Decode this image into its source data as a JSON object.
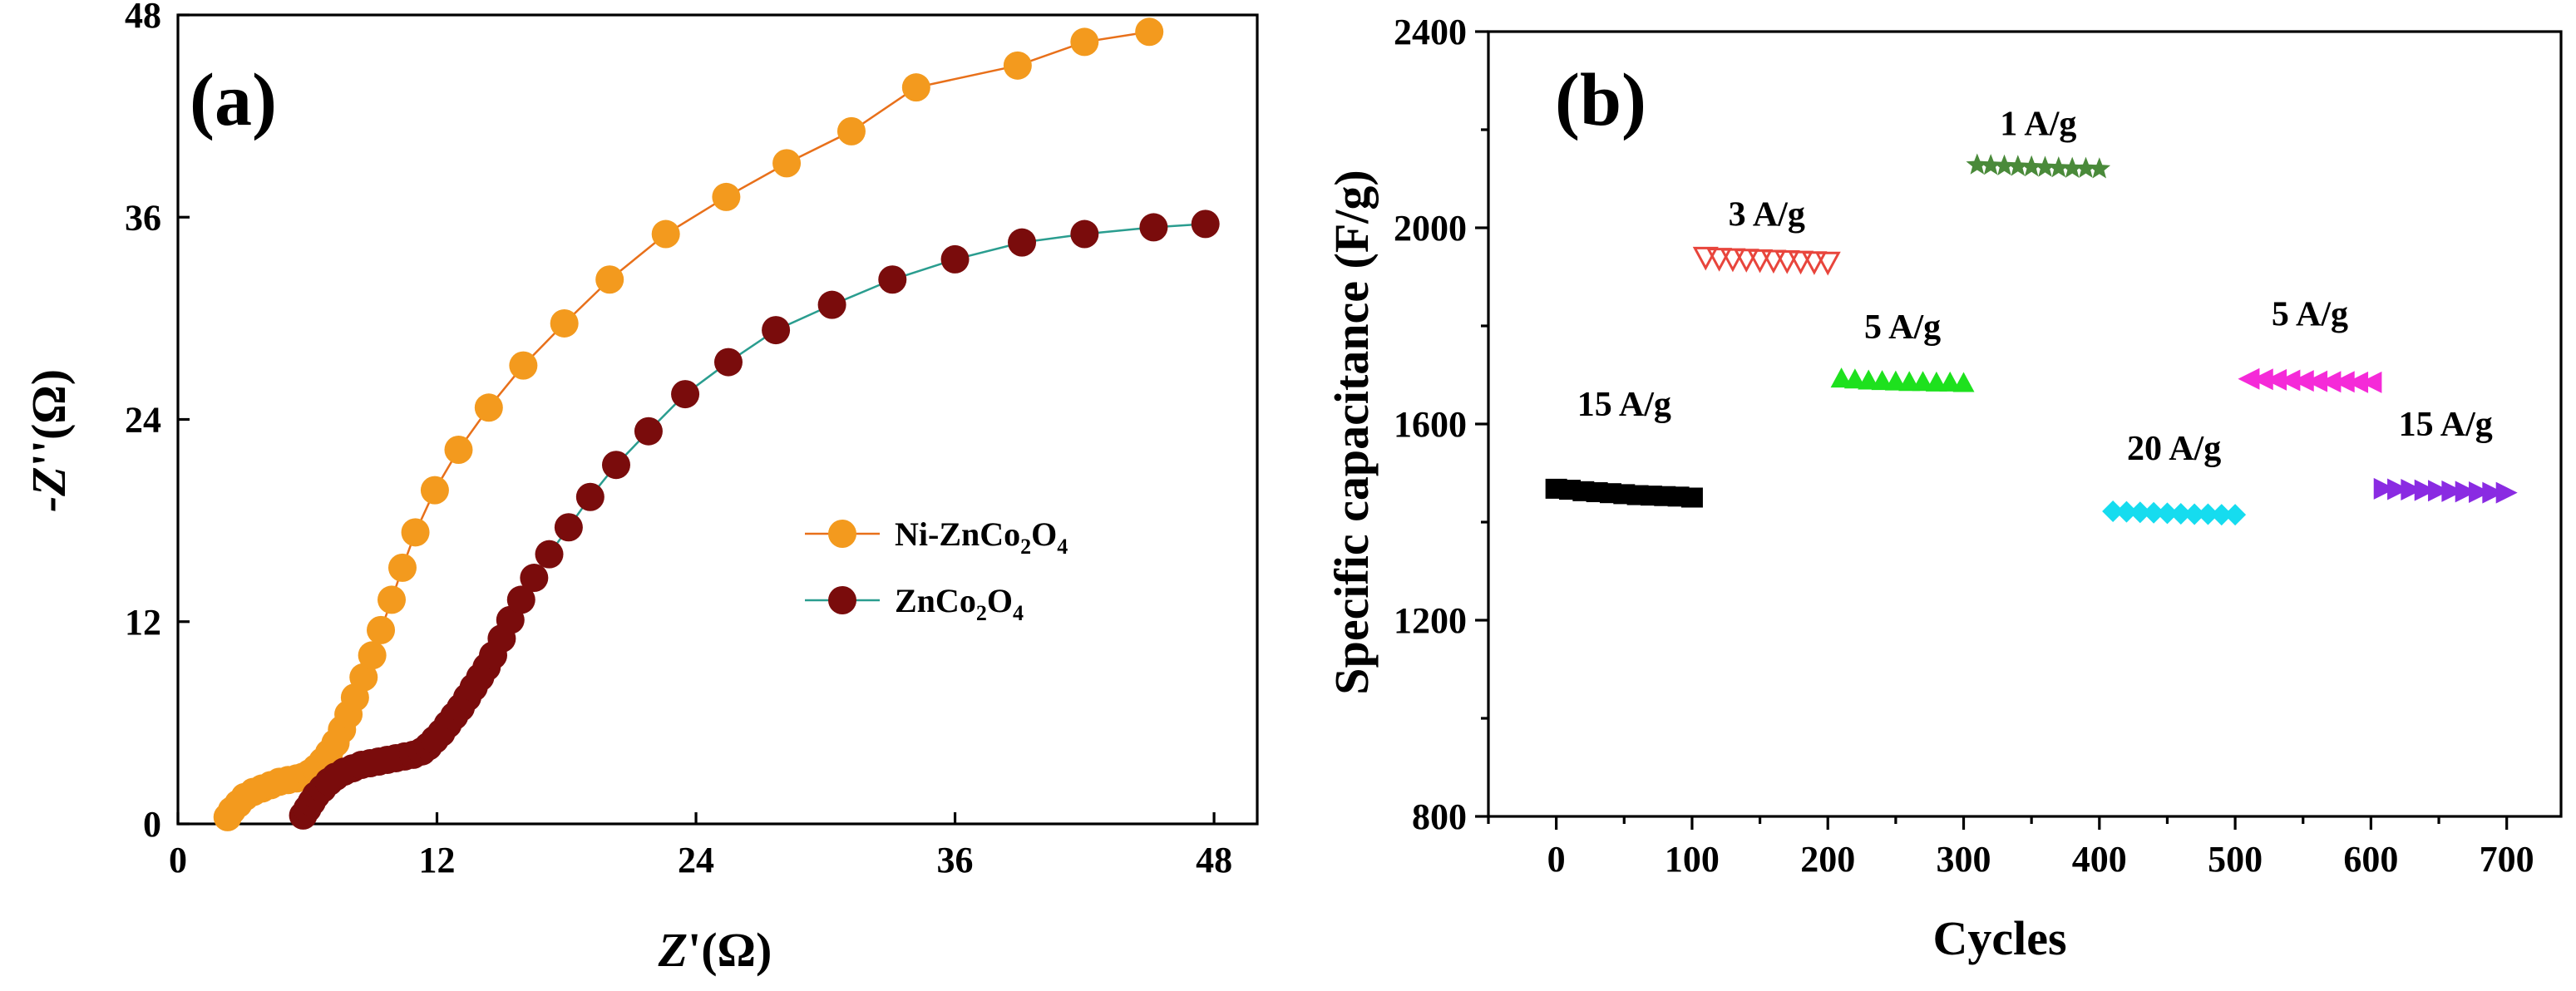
{
  "chart_data": [
    {
      "type": "scatter",
      "panel_label": "(a)",
      "xlabel_main": "Z",
      "xlabel_rest": "'(Ω)",
      "ylabel_main": "-Z",
      "ylabel_rest": "''(Ω)",
      "xlim": [
        0,
        50
      ],
      "ylim": [
        0,
        48
      ],
      "xticks": [
        0,
        12,
        24,
        36,
        48
      ],
      "yticks": [
        0,
        12,
        24,
        36,
        48
      ],
      "tick_labels_x": [
        "0",
        "12",
        "24",
        "36",
        "48"
      ],
      "tick_labels_y": [
        "0",
        "12",
        "24",
        "36",
        "48"
      ],
      "legend_position": "center-right",
      "legend_items": [
        {
          "base": "Ni-ZnCo",
          "s1": "2",
          "mid": "O",
          "s2": "4"
        },
        {
          "base": "ZnCo",
          "s1": "2",
          "mid": "O",
          "s2": "4"
        }
      ],
      "series": [
        {
          "name": "Ni-ZnCo2O4",
          "marker_color": "#f39a1e",
          "line_color": "#e8701a",
          "x": [
            2.3,
            2.5,
            2.8,
            3.1,
            3.5,
            3.9,
            4.3,
            4.7,
            5.1,
            5.5,
            5.8,
            6.1,
            6.4,
            6.7,
            7.0,
            7.3,
            7.6,
            7.9,
            8.2,
            8.6,
            9.0,
            9.4,
            9.9,
            10.4,
            11.0,
            11.9,
            13.0,
            14.4,
            16.0,
            17.9,
            20.0,
            22.6,
            25.4,
            28.2,
            31.2,
            34.2,
            38.9,
            42.0,
            45.0
          ],
          "y": [
            0.4,
            0.8,
            1.2,
            1.6,
            1.9,
            2.1,
            2.3,
            2.5,
            2.6,
            2.7,
            2.8,
            3.0,
            3.3,
            3.7,
            4.2,
            4.8,
            5.6,
            6.5,
            7.5,
            8.7,
            10.0,
            11.5,
            13.3,
            15.2,
            17.3,
            19.8,
            22.2,
            24.7,
            27.2,
            29.7,
            32.3,
            35.0,
            37.2,
            39.2,
            41.1,
            43.7,
            45.0,
            46.4,
            47.0
          ]
        },
        {
          "name": "ZnCo2O4",
          "marker_color": "#7a0c0c",
          "line_color": "#2a9d8f",
          "x": [
            5.8,
            6.0,
            6.2,
            6.4,
            6.7,
            7.0,
            7.3,
            7.7,
            8.1,
            8.5,
            8.9,
            9.3,
            9.7,
            10.1,
            10.5,
            10.9,
            11.3,
            11.6,
            11.9,
            12.2,
            12.5,
            12.8,
            13.1,
            13.4,
            13.7,
            14.0,
            14.3,
            14.6,
            15.0,
            15.4,
            15.9,
            16.5,
            17.2,
            18.1,
            19.1,
            20.3,
            21.8,
            23.5,
            25.5,
            27.7,
            30.3,
            33.1,
            36.0,
            39.1,
            42.0,
            45.2,
            47.6
          ],
          "y": [
            0.5,
            0.9,
            1.3,
            1.7,
            2.1,
            2.5,
            2.8,
            3.1,
            3.3,
            3.5,
            3.6,
            3.7,
            3.8,
            3.9,
            4.0,
            4.1,
            4.3,
            4.6,
            5.0,
            5.4,
            5.9,
            6.4,
            6.9,
            7.5,
            8.1,
            8.7,
            9.3,
            10.0,
            11.0,
            12.1,
            13.3,
            14.6,
            16.0,
            17.6,
            19.4,
            21.3,
            23.3,
            25.5,
            27.4,
            29.3,
            30.8,
            32.3,
            33.5,
            34.5,
            35.0,
            35.4,
            35.6
          ]
        }
      ]
    },
    {
      "type": "scatter",
      "panel_label": "(b)",
      "xlabel": "Cycles",
      "ylabel": "Specific capacitance (F/g)",
      "xlim": [
        -50,
        740
      ],
      "ylim": [
        800,
        2400
      ],
      "xticks": [
        0,
        100,
        200,
        300,
        400,
        500,
        600,
        700
      ],
      "yticks": [
        800,
        1200,
        1600,
        2000,
        2400
      ],
      "tick_labels_x": [
        "0",
        "100",
        "200",
        "300",
        "400",
        "500",
        "600",
        "700"
      ],
      "tick_labels_y": [
        "800",
        "1200",
        "1600",
        "2000",
        "2400"
      ],
      "series": [
        {
          "name": "15 A/g",
          "marker": "square",
          "color": "#000000",
          "x": [
            0,
            10,
            20,
            30,
            40,
            50,
            60,
            70,
            80,
            90,
            100
          ],
          "y": [
            1468,
            1466,
            1463,
            1461,
            1459,
            1457,
            1455,
            1454,
            1453,
            1452,
            1450
          ],
          "label": "15 A/g"
        },
        {
          "name": "3 A/g",
          "marker": "triangle-down-open",
          "color": "#e8453c",
          "x": [
            110,
            120,
            130,
            140,
            150,
            160,
            170,
            180,
            190,
            200
          ],
          "y": [
            1940,
            1938,
            1937,
            1936,
            1935,
            1934,
            1933,
            1932,
            1931,
            1930
          ],
          "label": "3 A/g"
        },
        {
          "name": "5 A/g",
          "marker": "triangle-up",
          "color": "#1ee11e",
          "x": [
            210,
            220,
            230,
            240,
            250,
            260,
            270,
            280,
            290,
            300
          ],
          "y": [
            1693,
            1691,
            1689,
            1688,
            1687,
            1686,
            1686,
            1685,
            1685,
            1684
          ],
          "label": "5 A/g"
        },
        {
          "name": "1 A/g",
          "marker": "star",
          "color": "#4a8a3a",
          "x": [
            310,
            320,
            330,
            340,
            350,
            360,
            370,
            380,
            390,
            400
          ],
          "y": [
            2128,
            2127,
            2126,
            2125,
            2124,
            2123,
            2122,
            2121,
            2121,
            2120
          ],
          "label": "1 A/g"
        },
        {
          "name": "20 A/g",
          "marker": "diamond",
          "color": "#16dcef",
          "x": [
            410,
            420,
            430,
            440,
            450,
            460,
            470,
            480,
            490,
            500
          ],
          "y": [
            1422,
            1421,
            1420,
            1419,
            1418,
            1417,
            1416,
            1416,
            1415,
            1415
          ],
          "label": "20 A/g"
        },
        {
          "name": "5 A/g (2)",
          "marker": "triangle-left",
          "color": "#f52ad8",
          "x": [
            510,
            520,
            530,
            540,
            550,
            560,
            570,
            580,
            590,
            600
          ],
          "y": [
            1692,
            1691,
            1690,
            1689,
            1688,
            1687,
            1686,
            1686,
            1685,
            1685
          ],
          "label": "5 A/g"
        },
        {
          "name": "15 A/g (2)",
          "marker": "triangle-right",
          "color": "#8a2be2",
          "x": [
            610,
            620,
            630,
            640,
            650,
            660,
            670,
            680,
            690,
            700
          ],
          "y": [
            1468,
            1467,
            1466,
            1465,
            1464,
            1463,
            1462,
            1461,
            1460,
            1460
          ],
          "label": "15 A/g"
        }
      ]
    }
  ]
}
